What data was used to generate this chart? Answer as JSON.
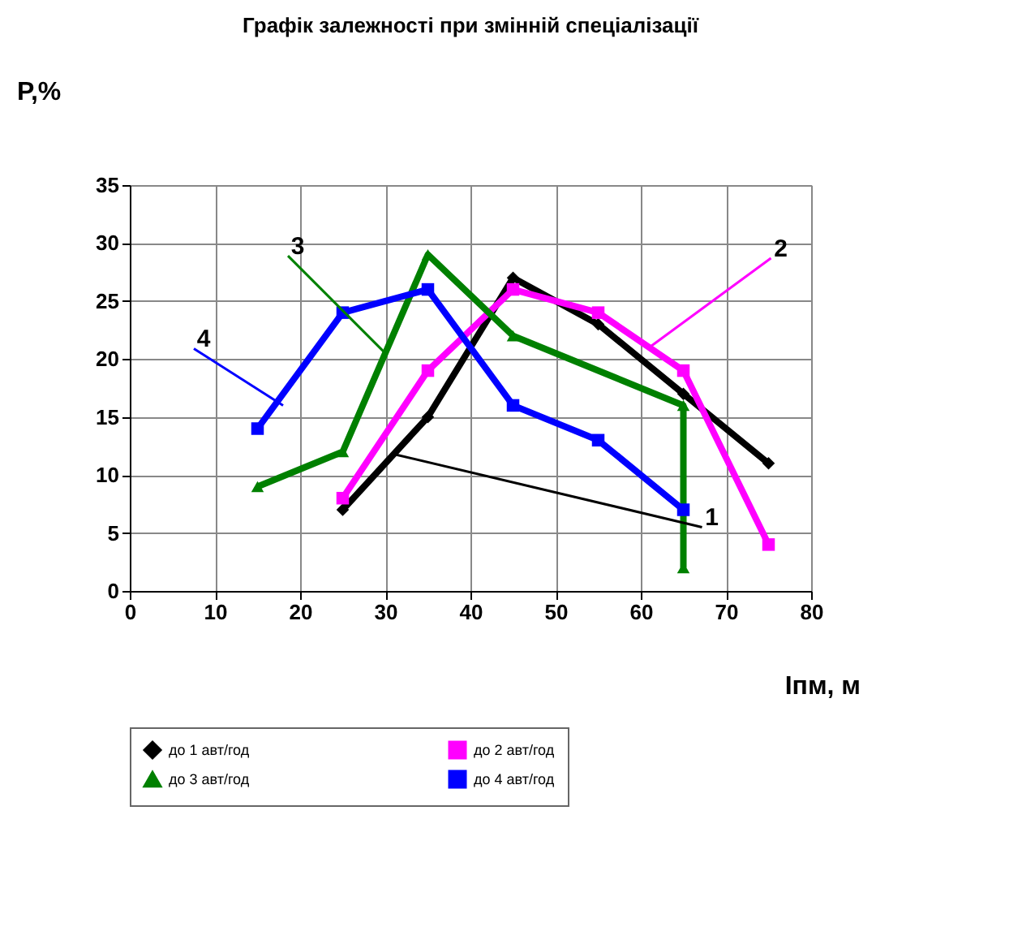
{
  "chart_data": {
    "type": "line",
    "title": "Графік залежності при змінній спеціалізації",
    "xlabel": "Іпм, м",
    "ylabel": "Р,%",
    "xlim": [
      0,
      80
    ],
    "xticks": [
      0,
      10,
      20,
      30,
      40,
      50,
      60,
      70,
      80
    ],
    "ylim": [
      0,
      35
    ],
    "yticks": [
      0,
      5,
      10,
      15,
      20,
      25,
      30,
      35
    ],
    "grid": true,
    "legend": "bottom",
    "series": [
      {
        "name": "до 1 авт/год",
        "color": "#000000",
        "marker": "diamond",
        "x": [
          25,
          35,
          45,
          55,
          65,
          75
        ],
        "values": [
          7,
          15,
          27,
          23,
          17,
          11
        ]
      },
      {
        "name": "до 2 авт/год",
        "color": "#ff00ff",
        "marker": "square",
        "x": [
          25,
          35,
          45,
          55,
          65,
          75
        ],
        "values": [
          8,
          19,
          26,
          24,
          19,
          4
        ]
      },
      {
        "name": "до 3 авт/год",
        "color": "#008000",
        "marker": "triangle",
        "x": [
          15,
          25,
          35,
          45,
          65,
          65
        ],
        "values": [
          9,
          12,
          29,
          22,
          16,
          2
        ]
      },
      {
        "name": "до 4 авт/год",
        "color": "#0000ff",
        "marker": "square",
        "x": [
          15,
          25,
          35,
          45,
          55,
          65
        ],
        "values": [
          14,
          24,
          26,
          16,
          13,
          7
        ]
      }
    ],
    "annotations": [
      {
        "text": "1",
        "x": 31,
        "y": 11.8
      },
      {
        "text": "2",
        "x": 61,
        "y": 21
      },
      {
        "text": "3",
        "x": 30,
        "y": 20.5
      },
      {
        "text": "4",
        "x": 18,
        "y": 16
      }
    ]
  }
}
